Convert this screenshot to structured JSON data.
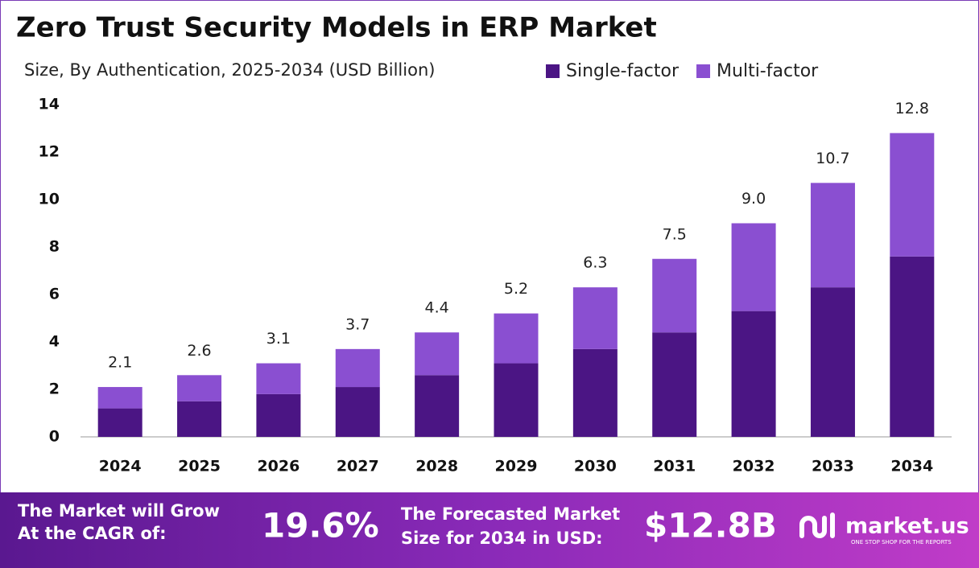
{
  "chart_data": {
    "type": "stacked_bar",
    "title": "Zero Trust Security Models in ERP Market",
    "subtitle": "Size, By Authentication, 2025-2034 (USD Billion)",
    "categories": [
      "2024",
      "2025",
      "2026",
      "2027",
      "2028",
      "2029",
      "2030",
      "2031",
      "2032",
      "2033",
      "2034"
    ],
    "series": [
      {
        "name": "Single-factor",
        "color": "#4b1584",
        "values": [
          1.2,
          1.5,
          1.8,
          2.1,
          2.6,
          3.1,
          3.7,
          4.4,
          5.3,
          6.3,
          7.6
        ]
      },
      {
        "name": "Multi-factor",
        "color": "#8a4fd1",
        "values": [
          0.9,
          1.1,
          1.3,
          1.6,
          1.8,
          2.1,
          2.6,
          3.1,
          3.7,
          4.4,
          5.2
        ]
      }
    ],
    "totals": [
      2.1,
      2.6,
      3.1,
      3.7,
      4.4,
      5.2,
      6.3,
      7.5,
      9,
      10.7,
      12.8
    ],
    "total_labels": [
      "2.1",
      "2.6",
      "3.1",
      "3.7",
      "4.4",
      "5.2",
      "6.3",
      "7.5",
      "9.0",
      "10.7",
      "12.8"
    ],
    "ylim": [
      0,
      14
    ],
    "yticks": [
      0,
      2,
      4,
      6,
      8,
      10,
      12,
      14
    ],
    "grid": false
  },
  "footer": {
    "cagr_label": [
      "The Market will Grow",
      "At the CAGR of:"
    ],
    "cagr": "19.6%",
    "forecast_label": [
      "The Forecasted Market",
      "Size for 2034 in USD:"
    ],
    "forecast": "$12.8B",
    "brand": "market.us",
    "tagline": "ONE STOP SHOP FOR THE REPORTS"
  }
}
